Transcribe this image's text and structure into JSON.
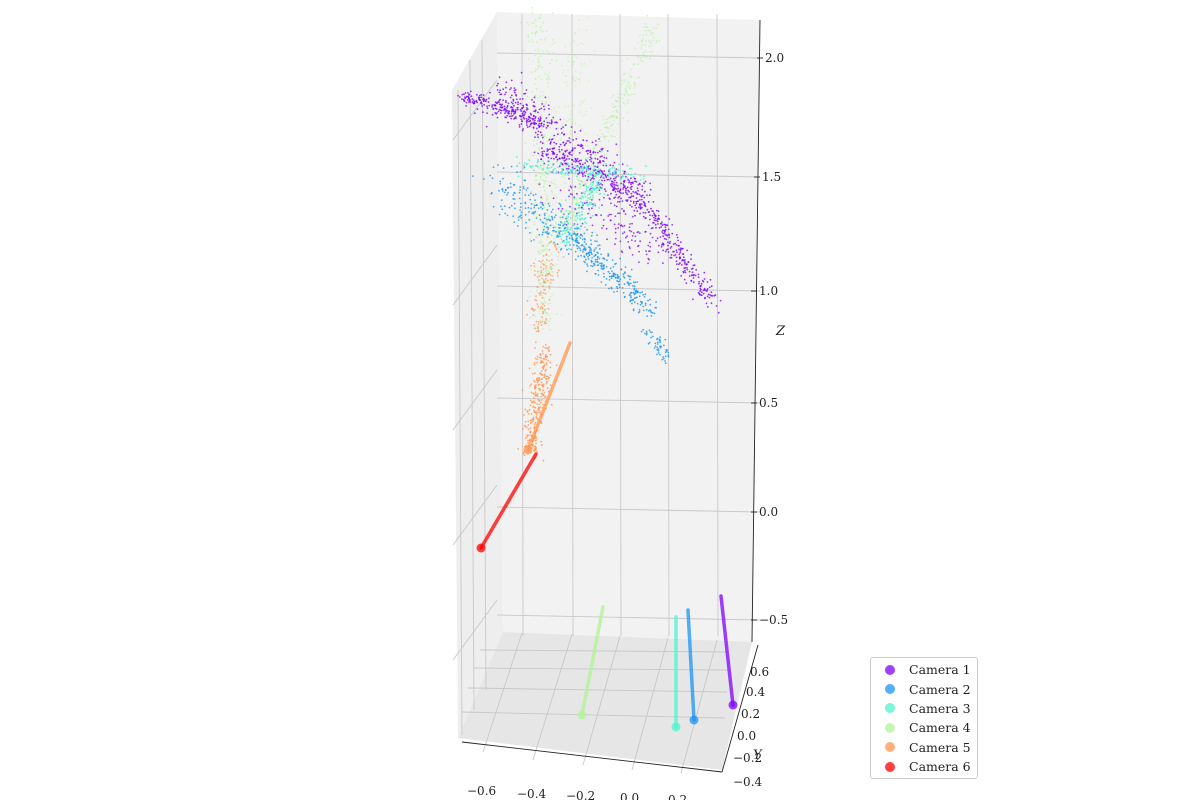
{
  "chart_data": {
    "type": "scatter",
    "projection": "3d",
    "axes": {
      "x": {
        "label": "",
        "ticks": [
          "−0.6",
          "−0.4",
          "−0.2",
          "0.0",
          "0.2"
        ]
      },
      "y": {
        "label": "Y",
        "ticks": [
          "−0.4",
          "−0.2",
          "0.0",
          "0.2",
          "0.4",
          "0.6"
        ]
      },
      "z": {
        "label": "Z",
        "ticks": [
          "−0.5",
          "0.0",
          "0.5",
          "1.0",
          "1.5",
          "2.0"
        ]
      }
    },
    "grid": true,
    "legend_position": "bottom-right",
    "series": [
      {
        "name": "Camera 1",
        "color": "#8000ff"
      },
      {
        "name": "Camera 2",
        "color": "#1996f3"
      },
      {
        "name": "Camera 3",
        "color": "#4df3ce"
      },
      {
        "name": "Camera 4",
        "color": "#b2f396"
      },
      {
        "name": "Camera 5",
        "color": "#ff964f"
      },
      {
        "name": "Camera 6",
        "color": "#ff0000"
      }
    ]
  }
}
